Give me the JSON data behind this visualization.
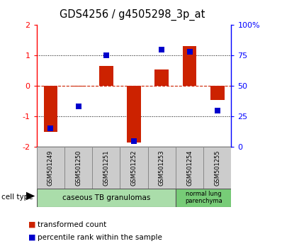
{
  "title": "GDS4256 / g4505298_3p_at",
  "samples": [
    "GSM501249",
    "GSM501250",
    "GSM501251",
    "GSM501252",
    "GSM501253",
    "GSM501254",
    "GSM501255"
  ],
  "transformed_count": [
    -1.5,
    -0.02,
    0.65,
    -1.85,
    0.55,
    1.3,
    -0.45
  ],
  "percentile_rank": [
    15,
    33,
    75,
    5,
    80,
    78,
    30
  ],
  "ylim_left": [
    -2,
    2
  ],
  "ylim_right": [
    0,
    100
  ],
  "yticks_left": [
    -2,
    -1,
    0,
    1,
    2
  ],
  "yticks_right": [
    0,
    25,
    50,
    75,
    100
  ],
  "yticklabels_right": [
    "0",
    "25",
    "50",
    "75",
    "100%"
  ],
  "yticklabels_left": [
    "-2",
    "-1",
    "0",
    "1",
    "2"
  ],
  "bar_color": "#cc2200",
  "dot_color": "#0000cc",
  "zero_line_color": "#cc2200",
  "bar_width": 0.5,
  "dot_size": 40,
  "cell_groups": [
    {
      "label": "caseous TB granulomas",
      "n_samples": 5,
      "color": "#aaddaa"
    },
    {
      "label": "normal lung\nparenchyma",
      "n_samples": 2,
      "color": "#77cc77"
    }
  ],
  "legend_items": [
    {
      "label": "transformed count",
      "color": "#cc2200"
    },
    {
      "label": "percentile rank within the sample",
      "color": "#0000cc"
    }
  ]
}
